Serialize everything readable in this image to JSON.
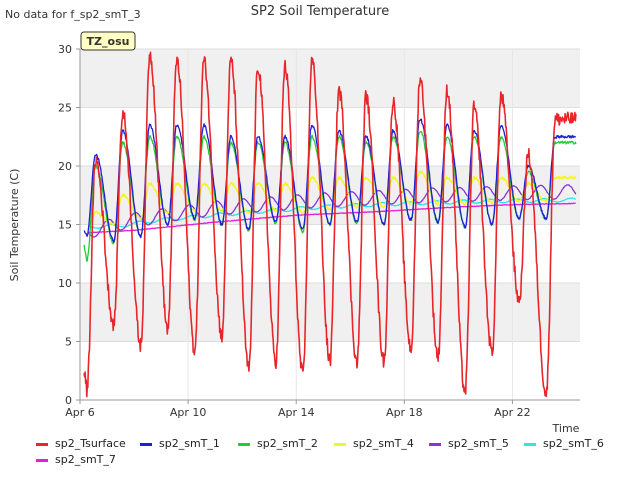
{
  "notice": "No data for f_sp2_smT_3",
  "chart_data": {
    "type": "line",
    "title": "SP2 Soil Temperature",
    "xlabel": "Time",
    "ylabel": "Soil Temperature (C)",
    "site_badge": "TZ_osu",
    "xlim": [
      0,
      18.5
    ],
    "ylim": [
      0,
      30
    ],
    "x_unit": "days since Apr 6",
    "x_ticks": [
      {
        "value": 0,
        "label": "Apr 6"
      },
      {
        "value": 4,
        "label": "Apr 10"
      },
      {
        "value": 8,
        "label": "Apr 14"
      },
      {
        "value": 12,
        "label": "Apr 18"
      },
      {
        "value": 16,
        "label": "Apr 22"
      }
    ],
    "y_ticks": [
      0,
      5,
      10,
      15,
      20,
      25,
      30
    ],
    "daily_pattern": {
      "days": [
        "Apr 6",
        "Apr 7",
        "Apr 8",
        "Apr 9",
        "Apr 10",
        "Apr 11",
        "Apr 12",
        "Apr 13",
        "Apr 14",
        "Apr 15",
        "Apr 16",
        "Apr 17",
        "Apr 18",
        "Apr 19",
        "Apr 20",
        "Apr 21",
        "Apr 22",
        "Apr 23"
      ],
      "tsurface_max": [
        20.5,
        24.5,
        29.5,
        29.0,
        29.0,
        29.0,
        28.5,
        28.5,
        29.0,
        26.5,
        26.0,
        25.5,
        27.5,
        26.5,
        25.0,
        26.0,
        21.0,
        24.0
      ],
      "tsurface_min": [
        0.8,
        6.5,
        4.7,
        6.0,
        4.2,
        5.5,
        2.6,
        3.3,
        2.1,
        3.3,
        3.2,
        3.3,
        4.4,
        3.7,
        0.7,
        4.1,
        8.5,
        0.5
      ],
      "smT1_max": [
        21.0,
        23.0,
        23.5,
        23.5,
        23.5,
        22.5,
        22.5,
        22.5,
        23.5,
        23.0,
        22.5,
        23.0,
        24.0,
        23.5,
        23.0,
        23.5,
        20.0,
        22.5
      ],
      "smT1_min": [
        14.0,
        13.6,
        14.0,
        15.0,
        15.5,
        15.0,
        14.6,
        15.2,
        14.6,
        15.0,
        15.2,
        15.0,
        15.4,
        15.2,
        14.8,
        15.0,
        15.5,
        15.5
      ],
      "smT2_max": [
        20.0,
        22.0,
        22.5,
        22.5,
        22.5,
        22.0,
        22.0,
        22.0,
        22.5,
        22.5,
        22.0,
        22.5,
        23.0,
        22.5,
        22.5,
        22.5,
        19.5,
        22.0
      ],
      "smT2_min": [
        11.9,
        13.4,
        14.0,
        15.0,
        15.4,
        15.0,
        14.5,
        15.1,
        14.4,
        15.0,
        15.1,
        15.0,
        15.4,
        15.2,
        14.8,
        15.0,
        15.5,
        15.5
      ],
      "smT4_max": [
        16.0,
        17.5,
        18.5,
        18.5,
        18.5,
        18.5,
        18.5,
        18.5,
        19.0,
        19.0,
        19.0,
        19.0,
        19.5,
        19.0,
        19.0,
        19.0,
        18.5,
        19.0
      ],
      "smT4_min": [
        14.5,
        15.0,
        15.5,
        16.0,
        16.2,
        16.2,
        16.0,
        16.2,
        16.0,
        16.3,
        16.5,
        16.5,
        16.8,
        16.8,
        16.7,
        16.8,
        17.0,
        17.0
      ]
    },
    "series": [
      {
        "name": "sp2_Tsurface",
        "color": "#e8262a",
        "daily_max_key": "tsurface_max",
        "daily_min_key": "tsurface_min",
        "x_range": [
          0.15,
          18.35
        ],
        "start_value": 2.5
      },
      {
        "name": "sp2_smT_1",
        "color": "#1f1fd6",
        "daily_max_key": "smT1_max",
        "daily_min_key": "smT1_min",
        "x_range": [
          0.15,
          18.35
        ],
        "start_value": 14.5
      },
      {
        "name": "sp2_smT_2",
        "color": "#22cc33",
        "daily_max_key": "smT2_max",
        "daily_min_key": "smT2_min",
        "x_range": [
          0.15,
          18.35
        ],
        "start_value": 13.2
      },
      {
        "name": "sp2_smT_4",
        "color": "#f5f51e",
        "daily_max_key": "smT4_max",
        "daily_min_key": "smT4_min",
        "x_range": [
          0.3,
          18.35
        ],
        "start_value": 14.6
      },
      {
        "name": "sp2_smT_5",
        "color": "#8a35d0",
        "amplitude": 0.6,
        "lag_days": 0.12,
        "trend": {
          "x": [
            0.3,
            2.0,
            5.0,
            9.0,
            13.0,
            16.0,
            18.35
          ],
          "y": [
            14.4,
            15.4,
            16.4,
            17.1,
            17.5,
            17.7,
            17.8
          ]
        },
        "x_range": [
          0.3,
          18.35
        ]
      },
      {
        "name": "sp2_smT_6",
        "color": "#2ee6e6",
        "amplitude": 0.15,
        "lag_days": 0.25,
        "trend": {
          "x": [
            0.3,
            1.5,
            3.0,
            6.0,
            9.0,
            12.0,
            15.0,
            18.35
          ],
          "y": [
            14.8,
            14.9,
            15.4,
            16.0,
            16.5,
            16.8,
            17.0,
            17.1
          ]
        },
        "x_range": [
          0.3,
          18.35
        ]
      },
      {
        "name": "sp2_smT_7",
        "color": "#e020e0",
        "amplitude": 0.0,
        "lag_days": 0.0,
        "trend": {
          "x": [
            0.3,
            2.0,
            5.0,
            8.0,
            11.0,
            14.0,
            16.0,
            18.35
          ],
          "y": [
            14.3,
            14.5,
            15.2,
            15.8,
            16.1,
            16.5,
            16.7,
            16.8
          ]
        },
        "x_range": [
          0.3,
          18.35
        ]
      }
    ]
  }
}
